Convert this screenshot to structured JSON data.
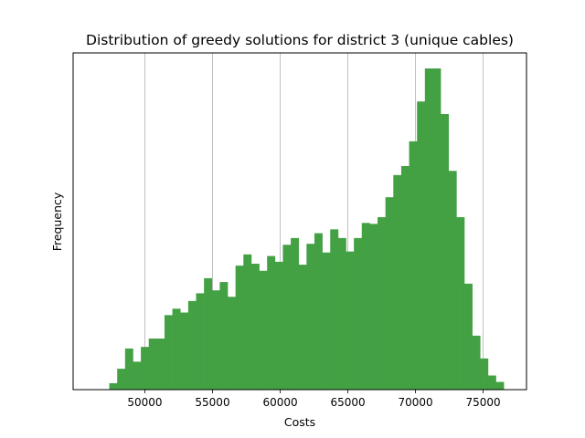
{
  "chart_data": {
    "type": "bar",
    "title": "Distribution of greedy solutions for district 3 (unique cables)",
    "xlabel": "Costs",
    "ylabel": "Frequency",
    "xlim": [
      44700,
      78200
    ],
    "ylim": [
      0,
      100
    ],
    "grid": {
      "x": true,
      "y": false
    },
    "x_ticks": [
      50000,
      55000,
      60000,
      65000,
      70000,
      75000
    ],
    "x_tick_labels": [
      "50000",
      "55000",
      "60000",
      "65000",
      "70000",
      "75000"
    ],
    "y_ticks_shown": false,
    "bar_color": "#43a043",
    "bin_edges": [
      47372,
      47955,
      48538,
      49121,
      49704,
      50287,
      50870,
      51453,
      52036,
      52619,
      53202,
      53785,
      54368,
      54951,
      55534,
      56117,
      56700,
      57283,
      57866,
      58449,
      59032,
      59615,
      60198,
      60781,
      61364,
      61947,
      62530,
      63113,
      63696,
      64279,
      64862,
      65445,
      66028,
      66611,
      67194,
      67777,
      68360,
      68943,
      69526,
      70109,
      70692,
      71275,
      71858,
      72441,
      73024,
      73607,
      74190,
      74773,
      75356,
      75939,
      76522
    ],
    "values": [
      2.0,
      6.5,
      12.8,
      8.7,
      13.3,
      15.9,
      15.9,
      23.2,
      25.2,
      24.0,
      27.6,
      30.0,
      34.7,
      30.9,
      33.5,
      28.9,
      38.6,
      42.1,
      39.2,
      37.0,
      41.6,
      39.8,
      45.1,
      47.2,
      38.9,
      45.4,
      48.7,
      42.7,
      49.9,
      47.2,
      43.0,
      47.2,
      51.9,
      51.6,
      53.7,
      59.9,
      66.8,
      69.6,
      77.3,
      89.7,
      100.0,
      100.0,
      85.8,
      68.1,
      53.7,
      33.0,
      16.8,
      9.7,
      4.4,
      2.4,
      1.5
    ]
  }
}
